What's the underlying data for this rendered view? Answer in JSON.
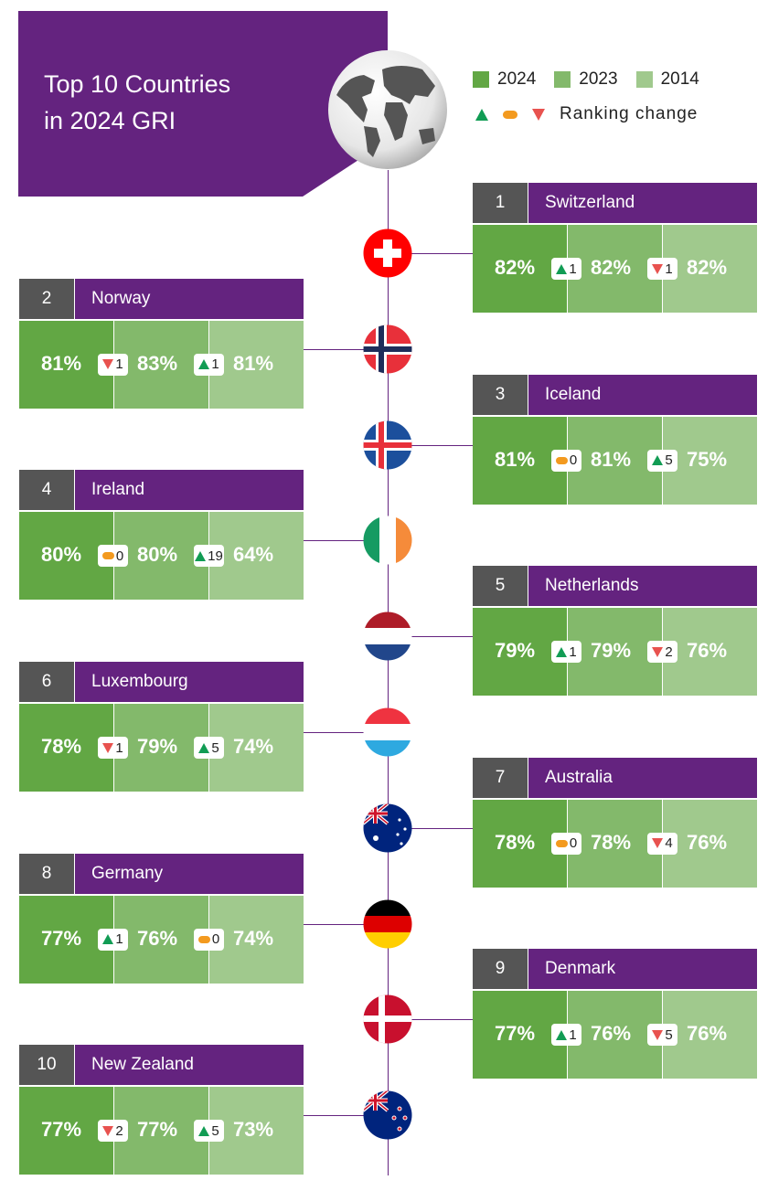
{
  "title": [
    "Top 10 Countries",
    "in 2024 GRI"
  ],
  "legend": {
    "years": [
      {
        "label": "2024",
        "color": "#62a744"
      },
      {
        "label": "2023",
        "color": "#83b96b"
      },
      {
        "label": "2014",
        "color": "#a0c98d"
      }
    ],
    "ranking_change_label": "Ranking change"
  },
  "colors": {
    "purple": "#64237f",
    "up": "#119c54",
    "down": "#e8524f",
    "same": "#f39a1f"
  },
  "countries": [
    {
      "rank": "1",
      "name": "Switzerland",
      "flag": "ch",
      "v2024": "82%",
      "c1": {
        "dir": "up",
        "n": "1"
      },
      "v2023": "82%",
      "c2": {
        "dir": "down",
        "n": "1"
      },
      "v2014": "82%"
    },
    {
      "rank": "2",
      "name": "Norway",
      "flag": "no",
      "v2024": "81%",
      "c1": {
        "dir": "down",
        "n": "1"
      },
      "v2023": "83%",
      "c2": {
        "dir": "up",
        "n": "1"
      },
      "v2014": "81%"
    },
    {
      "rank": "3",
      "name": "Iceland",
      "flag": "is",
      "v2024": "81%",
      "c1": {
        "dir": "same",
        "n": "0"
      },
      "v2023": "81%",
      "c2": {
        "dir": "up",
        "n": "5"
      },
      "v2014": "75%"
    },
    {
      "rank": "4",
      "name": "Ireland",
      "flag": "ie",
      "v2024": "80%",
      "c1": {
        "dir": "same",
        "n": "0"
      },
      "v2023": "80%",
      "c2": {
        "dir": "up",
        "n": "19"
      },
      "v2014": "64%"
    },
    {
      "rank": "5",
      "name": "Netherlands",
      "flag": "nl",
      "v2024": "79%",
      "c1": {
        "dir": "up",
        "n": "1"
      },
      "v2023": "79%",
      "c2": {
        "dir": "down",
        "n": "2"
      },
      "v2014": "76%"
    },
    {
      "rank": "6",
      "name": "Luxembourg",
      "flag": "lu",
      "v2024": "78%",
      "c1": {
        "dir": "down",
        "n": "1"
      },
      "v2023": "79%",
      "c2": {
        "dir": "up",
        "n": "5"
      },
      "v2014": "74%"
    },
    {
      "rank": "7",
      "name": "Australia",
      "flag": "au",
      "v2024": "78%",
      "c1": {
        "dir": "same",
        "n": "0"
      },
      "v2023": "78%",
      "c2": {
        "dir": "down",
        "n": "4"
      },
      "v2014": "76%"
    },
    {
      "rank": "8",
      "name": "Germany",
      "flag": "de",
      "v2024": "77%",
      "c1": {
        "dir": "up",
        "n": "1"
      },
      "v2023": "76%",
      "c2": {
        "dir": "same",
        "n": "0"
      },
      "v2014": "74%"
    },
    {
      "rank": "9",
      "name": "Denmark",
      "flag": "dk",
      "v2024": "77%",
      "c1": {
        "dir": "up",
        "n": "1"
      },
      "v2023": "76%",
      "c2": {
        "dir": "down",
        "n": "5"
      },
      "v2014": "76%"
    },
    {
      "rank": "10",
      "name": "New Zealand",
      "flag": "nz",
      "v2024": "77%",
      "c1": {
        "dir": "down",
        "n": "2"
      },
      "v2023": "77%",
      "c2": {
        "dir": "up",
        "n": "5"
      },
      "v2014": "73%"
    }
  ]
}
